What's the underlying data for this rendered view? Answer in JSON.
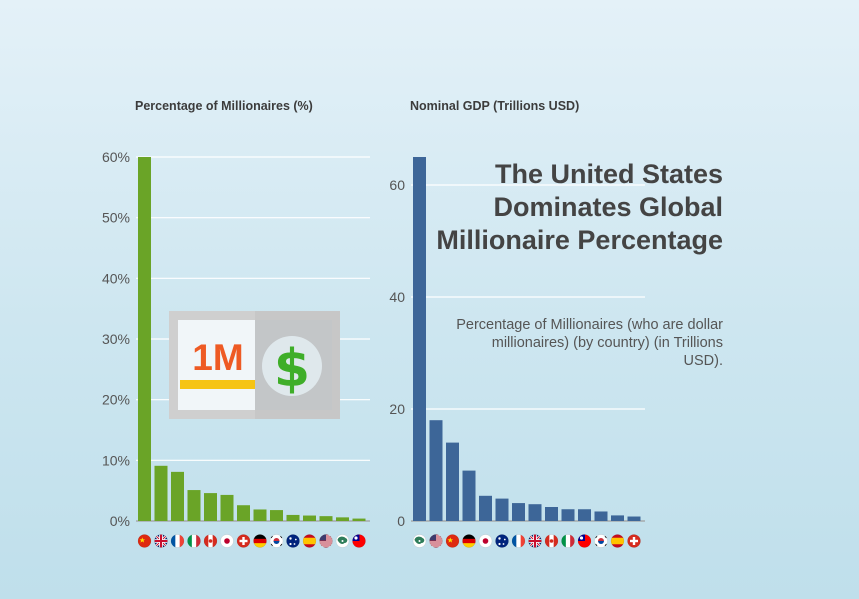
{
  "headline": "The United States Dominates Global Millionaire Percentage",
  "subtitle": "Percentage of Millionaires (who are dollar millionaires) (by country) (in Trillions USD).",
  "illustration": {
    "icon": "million-dollar-banknote-icon",
    "amount_text": "1M",
    "currency_symbol": "$",
    "colors": {
      "frame": "#cccccc",
      "amount": "#ee5a24",
      "stripe": "#f6c414",
      "coin": "#3fae29"
    }
  },
  "chart_data": [
    {
      "type": "bar",
      "title": "Percentage of Millionaires (%)",
      "color": "#6aa427",
      "categories": [
        "cn",
        "gb",
        "fr",
        "it",
        "ca",
        "jp",
        "ch",
        "de",
        "kr",
        "au",
        "es",
        "us",
        "ng",
        "tw"
      ],
      "values": [
        60,
        9.1,
        8.1,
        5.1,
        4.6,
        4.3,
        2.6,
        1.9,
        1.8,
        1.0,
        0.9,
        0.8,
        0.6,
        0.4
      ],
      "ylim": [
        0,
        60
      ],
      "yticks": [
        {
          "value": 0,
          "label": "0%"
        },
        {
          "value": 10,
          "label": "10%"
        },
        {
          "value": 20,
          "label": "20%"
        },
        {
          "value": 30,
          "label": "30%"
        },
        {
          "value": 40,
          "label": "40%"
        },
        {
          "value": 50,
          "label": "50%"
        },
        {
          "value": 60,
          "label": "60%"
        }
      ],
      "grid": true
    },
    {
      "type": "bar",
      "title": "Nominal GDP (Trillions USD)",
      "color": "#3d6698",
      "categories": [
        "ng",
        "us",
        "cn",
        "de",
        "jp",
        "au",
        "fr",
        "gb",
        "ca",
        "it",
        "tw",
        "kr",
        "es",
        "ch"
      ],
      "values": [
        65,
        18,
        14,
        9,
        4.5,
        4,
        3.2,
        3,
        2.5,
        2.1,
        2.1,
        1.7,
        1,
        0.8
      ],
      "ylim": [
        0,
        65
      ],
      "yticks": [
        {
          "value": 0,
          "label": "0"
        },
        {
          "value": 20,
          "label": "20"
        },
        {
          "value": 40,
          "label": "40"
        },
        {
          "value": 60,
          "label": "60"
        }
      ],
      "grid": true
    }
  ],
  "flags": {
    "cn": {
      "name": "China flag",
      "bg": "#de2910",
      "fg": "#ffde00",
      "mark": "star"
    },
    "gb": {
      "name": "United Kingdom flag",
      "bg": "#012169",
      "fg": "#ffffff",
      "mark": "union"
    },
    "fr": {
      "name": "France flag",
      "bands": [
        "#0055a4",
        "#ffffff",
        "#ef4135"
      ]
    },
    "it": {
      "name": "Italy flag",
      "bands": [
        "#009246",
        "#ffffff",
        "#ce2b37"
      ]
    },
    "ca": {
      "name": "Canada flag",
      "bands": [
        "#d52b1e",
        "#ffffff",
        "#d52b1e"
      ],
      "fg": "#d52b1e",
      "mark": "dot"
    },
    "jp": {
      "name": "Japan flag",
      "bg": "#ffffff",
      "fg": "#bc002d",
      "mark": "dot"
    },
    "ch": {
      "name": "Switzerland flag",
      "bg": "#d52b1e",
      "fg": "#ffffff",
      "mark": "cross"
    },
    "de": {
      "name": "Germany flag",
      "hbands": [
        "#000000",
        "#dd0000",
        "#ffce00"
      ]
    },
    "kr": {
      "name": "South Korea flag",
      "bg": "#ffffff",
      "fg": "#cd2e3a",
      "fg2": "#0047a0",
      "mark": "taegeuk"
    },
    "au": {
      "name": "Australia flag",
      "bg": "#00247d",
      "fg": "#ffffff",
      "mark": "stars"
    },
    "es": {
      "name": "Spain flag",
      "hbands": [
        "#c60b1e",
        "#ffc400",
        "#c60b1e"
      ],
      "weights": [
        1,
        2,
        1
      ]
    },
    "us": {
      "name": "United States flag",
      "bg": "#ffffff",
      "fg": "#b22234",
      "fg2": "#3c3b6e",
      "mark": "stripes"
    },
    "ng": {
      "name": "Map emblem",
      "bg": "#ffffff",
      "fg": "#2f7d5a",
      "mark": "blob"
    },
    "tw": {
      "name": "Taiwan flag",
      "bg": "#fe0000",
      "fg": "#000095",
      "mark": "canton"
    }
  }
}
